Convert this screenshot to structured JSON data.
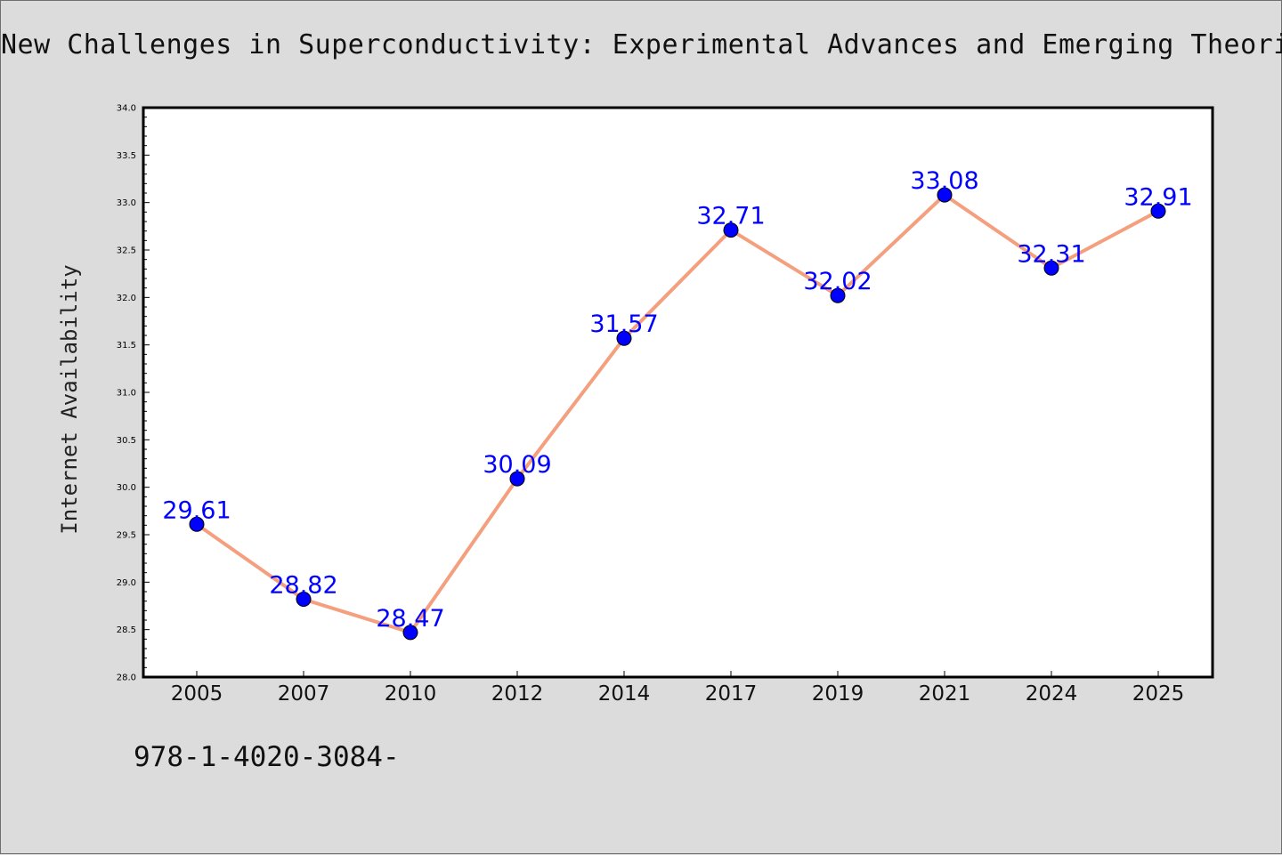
{
  "chart_data": {
    "type": "line",
    "title": "New Challenges in Superconductivity: Experimental Advances and Emerging Theories",
    "xlabel": "",
    "ylabel": "Internet Availability",
    "categories": [
      "2005",
      "2007",
      "2010",
      "2012",
      "2014",
      "2017",
      "2019",
      "2021",
      "2024",
      "2025"
    ],
    "values": [
      29.61,
      28.82,
      28.47,
      30.09,
      31.57,
      32.71,
      32.02,
      33.08,
      32.31,
      32.91
    ],
    "data_labels": [
      "29.61",
      "28.82",
      "28.47",
      "30.09",
      "31.57",
      "32.71",
      "32.02",
      "33.08",
      "32.31",
      "32.91"
    ],
    "ylim": [
      28.0,
      34.0
    ],
    "yticks": [
      "28.0",
      "28.5",
      "29.0",
      "29.5",
      "30.0",
      "30.5",
      "31.0",
      "31.5",
      "32.0",
      "32.5",
      "33.0",
      "33.5",
      "34.0"
    ],
    "grid": false,
    "legend": "none",
    "colors": {
      "line": "#f4a07e",
      "marker": "#0000ff",
      "label": "#0000ff",
      "background": "#dcdcdc",
      "plot_background": "#ffffff"
    }
  },
  "footnote": "978-1-4020-3084-"
}
